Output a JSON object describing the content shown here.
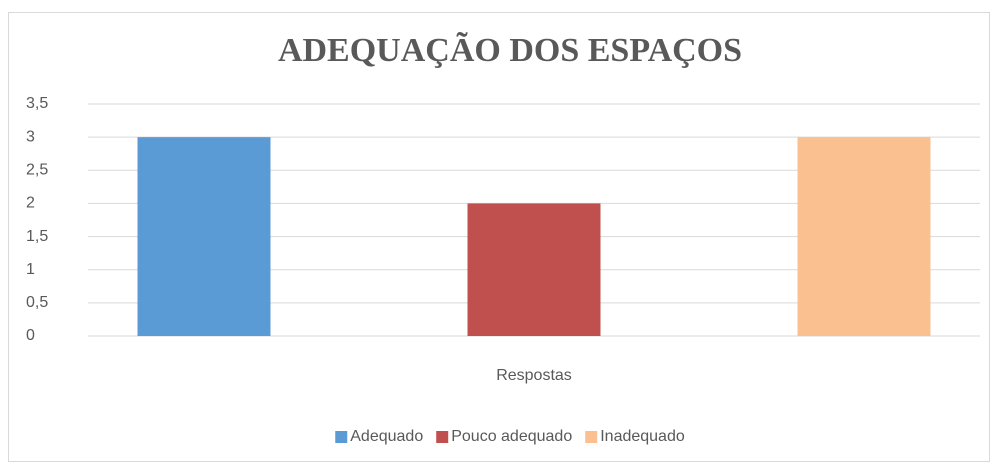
{
  "chart_data": {
    "type": "bar",
    "title": "ADEQUAÇÃO DOS ESPAÇOS",
    "categories": [
      "Respostas"
    ],
    "series": [
      {
        "name": "Adequado",
        "color": "#5b9bd5",
        "values": [
          3
        ]
      },
      {
        "name": "Pouco adequado",
        "color": "#c0504d",
        "values": [
          2
        ]
      },
      {
        "name": "Inadequado",
        "color": "#fac090",
        "values": [
          3
        ]
      }
    ],
    "ylim": [
      0,
      3.5
    ],
    "yticks": [
      0,
      {
        "value": 0.5,
        "label": "0,5"
      },
      1,
      {
        "value": 1.5,
        "label": "1,5"
      },
      2,
      {
        "value": 2.5,
        "label": "2,5"
      },
      3,
      {
        "value": 3.5,
        "label": "3,5"
      }
    ],
    "grid": true,
    "legend": "bottom"
  }
}
